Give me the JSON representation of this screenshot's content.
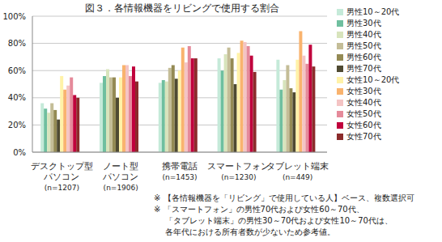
{
  "chart_data": {
    "type": "bar",
    "title": "図３．各情報機器をリビングで使用する割合",
    "categories": [
      "デスクトップ型\nパソコン\n(n=1207)",
      "ノート型\nパソコン\n(n=1906)",
      "携帯電話\n(n=1453)",
      "スマートフォン\n(n=1230)",
      "タブレット端末\n(n=449)"
    ],
    "series": [
      {
        "name": "男性10～20代",
        "color": "#c5ead9",
        "values": [
          36,
          51,
          51,
          69,
          68
        ]
      },
      {
        "name": "男性30代",
        "color": "#6fbf9f",
        "values": [
          32,
          56,
          53,
          60,
          46
        ]
      },
      {
        "name": "男性40代",
        "color": "#d8e4bc",
        "values": [
          29,
          61,
          52,
          72,
          53
        ]
      },
      {
        "name": "男性50代",
        "color": "#c4bd97",
        "values": [
          36,
          55,
          62,
          77,
          64
        ]
      },
      {
        "name": "男性60代",
        "color": "#948a54",
        "values": [
          31,
          55,
          64,
          69,
          47
        ]
      },
      {
        "name": "男性70代",
        "color": "#4f4a32",
        "values": [
          24,
          40,
          54,
          50,
          44
        ]
      },
      {
        "name": "女性10～20代",
        "color": "#fff2a8",
        "values": [
          56,
          55,
          60,
          73,
          68
        ]
      },
      {
        "name": "女性30代",
        "color": "#f9b36e",
        "values": [
          46,
          64,
          77,
          82,
          89
        ]
      },
      {
        "name": "女性40代",
        "color": "#f4c4c4",
        "values": [
          49,
          64,
          66,
          81,
          71
        ]
      },
      {
        "name": "女性50代",
        "color": "#e58a9a",
        "values": [
          55,
          56,
          78,
          78,
          65
        ]
      },
      {
        "name": "女性60代",
        "color": "#c0003c",
        "values": [
          42,
          63,
          69,
          71,
          79
        ]
      },
      {
        "name": "女性70代",
        "color": "#8b2b2b",
        "values": [
          40,
          52,
          69,
          59,
          63
        ]
      }
    ],
    "ylim": [
      0,
      100
    ],
    "yticks": [
      {
        "value": 0,
        "label": "0%"
      },
      {
        "value": 20,
        "label": "20%"
      },
      {
        "value": 40,
        "label": "40%"
      },
      {
        "value": 60,
        "label": "60%"
      },
      {
        "value": 80,
        "label": "80%"
      },
      {
        "value": 100,
        "label": "100%"
      }
    ],
    "grid": true,
    "legend": "right",
    "annotations": [
      "※ 【各情報機器を「リビング」で使用している人】ベース、複数選択可",
      "※ 「スマートフォン」の男性70代および女性60～70代、",
      "「タブレット端末」の男性30～70代および女性10～70代は、",
      "各年代における所有者数が少ないため参考値。"
    ]
  }
}
